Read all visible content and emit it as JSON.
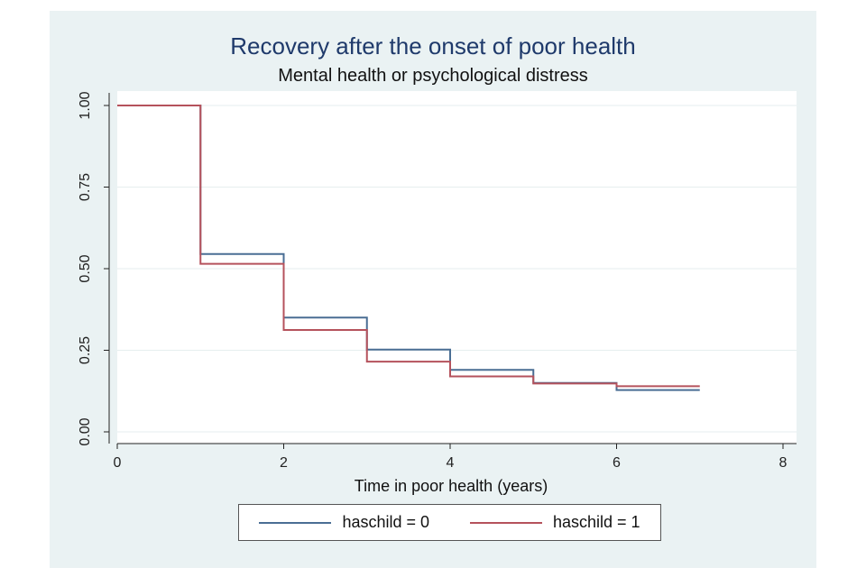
{
  "chart_data": {
    "type": "line",
    "step": true,
    "title": "Recovery after the onset of poor health",
    "subtitle": "Mental health or psychological distress",
    "xlabel": "Time in poor health (years)",
    "ylabel": "",
    "xlim": [
      0,
      8
    ],
    "ylim": [
      0,
      1
    ],
    "xticks": [
      0,
      2,
      4,
      6,
      8
    ],
    "xtick_labels": [
      "0",
      "2",
      "4",
      "6",
      "8"
    ],
    "yticks": [
      0,
      0.25,
      0.5,
      0.75,
      1
    ],
    "ytick_labels": [
      "0.00",
      "0.25",
      "0.50",
      "0.75",
      "1.00"
    ],
    "grid": true,
    "legend_position": "bottom",
    "series": [
      {
        "name": "haschild = 0",
        "color": "#4a6e94",
        "x": [
          0,
          1,
          2,
          3,
          4,
          5,
          6,
          7
        ],
        "y": [
          1.0,
          0.545,
          0.35,
          0.252,
          0.19,
          0.15,
          0.128,
          0.128
        ]
      },
      {
        "name": "haschild = 1",
        "color": "#b5525c",
        "x": [
          0,
          1,
          2,
          3,
          4,
          5,
          6,
          7
        ],
        "y": [
          1.0,
          0.515,
          0.312,
          0.215,
          0.17,
          0.148,
          0.14,
          0.14
        ]
      }
    ]
  }
}
